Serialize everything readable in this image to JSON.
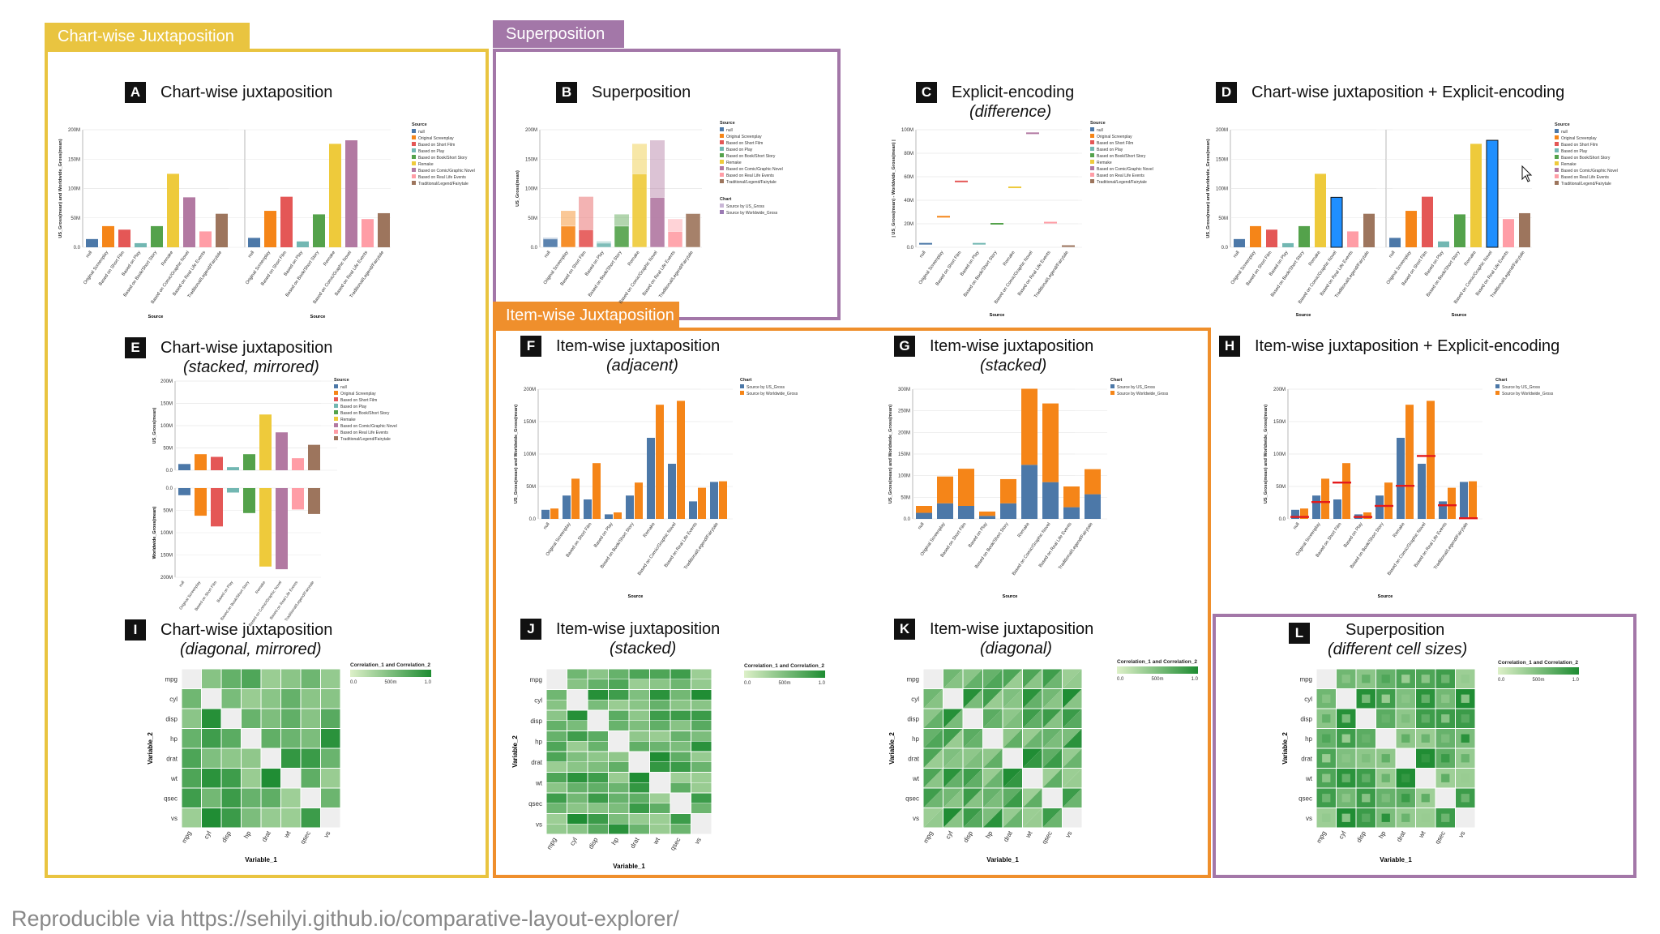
{
  "groups": {
    "chartwise": {
      "label": "Chart-wise Juxtaposition",
      "color": "#e9c440"
    },
    "superposition": {
      "label": "Superposition",
      "color": "#a377a8"
    },
    "itemwise": {
      "label": "Item-wise Juxtaposition",
      "color": "#ef8f2c"
    }
  },
  "footer": "Reproducible via https://sehilyi.github.io/comparative-layout-explorer/",
  "source_categories": [
    "null",
    "Original Screenplay",
    "Based on Short Film",
    "Based on Play",
    "Based on Book/Short Story",
    "Remake",
    "Based on Comic/Graphic Novel",
    "Based on Real Life Events",
    "Traditional/Legend/Fairytale"
  ],
  "source_colors": [
    "#4c78a8",
    "#f58518",
    "#e45756",
    "#72b7b2",
    "#54a24b",
    "#eeca3b",
    "#b279a2",
    "#ff9da6",
    "#9d755d"
  ],
  "series_colors": {
    "us": "#4c78a8",
    "worldwide": "#f58518",
    "diff": "#e41a1c",
    "highlight": "#1f8fff"
  },
  "variables": [
    "mpg",
    "cyl",
    "disp",
    "hp",
    "drat",
    "wt",
    "qsec",
    "vs"
  ],
  "axis_text": {
    "source": "Source",
    "null_label": "null",
    "gross_ylabel": "US_Gross(mean) and Worldwide_Gross(mean)",
    "us_ylabel": "US_Gross(mean)",
    "ww_ylabel": "Worldwide_Gross(mean)",
    "diff_ylabel": "| US_Gross(mean) - Worldwide_Gross(mean) |",
    "var1": "Variable_1",
    "var2": "Variable_2",
    "corr_legend": "Correlation_1 and Correlation_2",
    "corr_ticks": [
      "0.0",
      "500m",
      "1.0"
    ],
    "legend_source_title": "Source",
    "legend_chart_title": "Chart",
    "legend_chart_items": [
      "Source by US_Gross",
      "Source by Worldwide_Gross"
    ]
  },
  "panels": {
    "A": {
      "letter": "A",
      "title": "Chart-wise juxtaposition",
      "subtitle": ""
    },
    "B": {
      "letter": "B",
      "title": "Superposition",
      "subtitle": ""
    },
    "C": {
      "letter": "C",
      "title": "Explicit-encoding",
      "subtitle": "(difference)"
    },
    "D": {
      "letter": "D",
      "title": "Chart-wise juxtaposition + Explicit-encoding",
      "subtitle": ""
    },
    "E": {
      "letter": "E",
      "title": "Chart-wise juxtaposition",
      "subtitle": "(stacked, mirrored)"
    },
    "F": {
      "letter": "F",
      "title": "Item-wise juxtaposition",
      "subtitle": "(adjacent)"
    },
    "G": {
      "letter": "G",
      "title": "Item-wise juxtaposition",
      "subtitle": "(stacked)"
    },
    "H": {
      "letter": "H",
      "title": "Item-wise juxtaposition + Explicit-encoding",
      "subtitle": ""
    },
    "I": {
      "letter": "I",
      "title": "Chart-wise juxtaposition",
      "subtitle": "(diagonal, mirrored)"
    },
    "J": {
      "letter": "J",
      "title": "Item-wise juxtaposition",
      "subtitle": "(stacked)"
    },
    "K": {
      "letter": "K",
      "title": "Item-wise juxtaposition",
      "subtitle": "(diagonal)"
    },
    "L": {
      "letter": "L",
      "title": "Superposition",
      "subtitle": "(different cell sizes)"
    }
  },
  "chart_data": [
    {
      "panel": "A",
      "type": "bar",
      "categories": [
        "null",
        "Original Screenplay",
        "Based on Short Film",
        "Based on Play",
        "Based on Book/Short Story",
        "Remake",
        "Based on Comic/Graphic Novel",
        "Based on Real Life Events",
        "Traditional/Legend/Fairytale"
      ],
      "series": [
        {
          "name": "US_Gross(mean)",
          "values": [
            14,
            36,
            30,
            7,
            36,
            125,
            85,
            27,
            57
          ]
        },
        {
          "name": "Worldwide_Gross(mean)",
          "values": [
            16,
            62,
            86,
            10,
            56,
            176,
            182,
            48,
            58
          ]
        }
      ],
      "ylim": [
        0,
        200
      ],
      "yticks": [
        "0.0",
        "50M",
        "100M",
        "150M",
        "200M"
      ],
      "layout": "two charts side by side"
    },
    {
      "panel": "B",
      "type": "bar",
      "categories": [
        "null",
        "Original Screenplay",
        "Based on Short Film",
        "Based on Play",
        "Based on Book/Short Story",
        "Remake",
        "Based on Comic/Graphic Novel",
        "Based on Real Life Events",
        "Traditional/Legend/Fairytale"
      ],
      "series": [
        {
          "name": "Source by US_Gross",
          "values": [
            14,
            36,
            30,
            7,
            36,
            125,
            85,
            27,
            57
          ]
        },
        {
          "name": "Source by Worldwide_Gross",
          "values": [
            16,
            62,
            86,
            10,
            56,
            176,
            182,
            48,
            58
          ]
        }
      ],
      "ylim": [
        0,
        200
      ],
      "yticks": [
        "0.0",
        "50M",
        "100M",
        "150M",
        "200M"
      ],
      "layout": "overlaid"
    },
    {
      "panel": "C",
      "type": "scatter",
      "categories": [
        "null",
        "Original Screenplay",
        "Based on Short Film",
        "Based on Play",
        "Based on Book/Short Story",
        "Remake",
        "Based on Comic/Graphic Novel",
        "Based on Real Life Events",
        "Traditional/Legend/Fairytale"
      ],
      "values": [
        3,
        26,
        56,
        3,
        20,
        51,
        97,
        21,
        1
      ],
      "ylim": [
        0,
        100
      ],
      "yticks": [
        "0.0",
        "20M",
        "40M",
        "60M",
        "80M",
        "100M"
      ]
    },
    {
      "panel": "D",
      "type": "bar",
      "categories": [
        "null",
        "Original Screenplay",
        "Based on Short Film",
        "Based on Play",
        "Based on Book/Short Story",
        "Remake",
        "Based on Comic/Graphic Novel",
        "Based on Real Life Events",
        "Traditional/Legend/Fairytale"
      ],
      "series": [
        {
          "name": "US_Gross(mean)",
          "values": [
            14,
            36,
            30,
            7,
            36,
            125,
            85,
            27,
            57
          ]
        },
        {
          "name": "Worldwide_Gross(mean)",
          "values": [
            16,
            62,
            86,
            10,
            56,
            176,
            182,
            48,
            58
          ]
        }
      ],
      "highlight_category": "Based on Comic/Graphic Novel",
      "ylim": [
        0,
        200
      ],
      "yticks": [
        "0.0",
        "50M",
        "100M",
        "150M",
        "200M"
      ]
    },
    {
      "panel": "E",
      "type": "bar",
      "categories": [
        "null",
        "Original Screenplay",
        "Based on Short Film",
        "Based on Play",
        "Based on Book/Short Story",
        "Remake",
        "Based on Comic/Graphic Novel",
        "Based on Real Life Events",
        "Traditional/Legend/Fairytale"
      ],
      "series": [
        {
          "name": "US_Gross(mean)",
          "values": [
            14,
            36,
            30,
            7,
            36,
            125,
            85,
            27,
            57
          ]
        },
        {
          "name": "Worldwide_Gross(mean)",
          "values": [
            16,
            62,
            86,
            10,
            56,
            176,
            182,
            48,
            58
          ]
        }
      ],
      "ylim": [
        0,
        200
      ],
      "yticks_top": [
        "0.0",
        "50M",
        "100M",
        "150M",
        "200M"
      ],
      "yticks_bottom": [
        "0.0",
        "50M",
        "100M",
        "150M",
        "200M"
      ],
      "layout": "stacked, mirrored"
    },
    {
      "panel": "F",
      "type": "bar",
      "categories": [
        "null",
        "Original Screenplay",
        "Based on Short Film",
        "Based on Play",
        "Based on Book/Short Story",
        "Remake",
        "Based on Comic/Graphic Novel",
        "Based on Real Life Events",
        "Traditional/Legend/Fairytale"
      ],
      "series": [
        {
          "name": "Source by US_Gross",
          "values": [
            14,
            36,
            30,
            7,
            36,
            125,
            85,
            27,
            57
          ]
        },
        {
          "name": "Source by Worldwide_Gross",
          "values": [
            16,
            62,
            86,
            10,
            56,
            176,
            182,
            48,
            58
          ]
        }
      ],
      "ylim": [
        0,
        200
      ],
      "yticks": [
        "0.0",
        "50M",
        "100M",
        "150M",
        "200M"
      ],
      "layout": "grouped"
    },
    {
      "panel": "G",
      "type": "bar",
      "categories": [
        "null",
        "Original Screenplay",
        "Based on Short Film",
        "Based on Play",
        "Based on Book/Short Story",
        "Remake",
        "Based on Comic/Graphic Novel",
        "Based on Real Life Events",
        "Traditional/Legend/Fairytale"
      ],
      "series": [
        {
          "name": "Source by US_Gross",
          "values": [
            14,
            36,
            30,
            7,
            36,
            125,
            85,
            27,
            57
          ]
        },
        {
          "name": "Source by Worldwide_Gross",
          "values": [
            16,
            62,
            86,
            10,
            56,
            176,
            182,
            48,
            58
          ]
        }
      ],
      "ylim": [
        0,
        300
      ],
      "yticks": [
        "0.0",
        "50M",
        "100M",
        "150M",
        "200M",
        "250M",
        "300M"
      ],
      "layout": "stacked"
    },
    {
      "panel": "H",
      "type": "bar",
      "categories": [
        "null",
        "Original Screenplay",
        "Based on Short Film",
        "Based on Play",
        "Based on Book/Short Story",
        "Remake",
        "Based on Comic/Graphic Novel",
        "Based on Real Life Events",
        "Traditional/Legend/Fairytale"
      ],
      "series": [
        {
          "name": "Source by US_Gross",
          "values": [
            14,
            36,
            30,
            7,
            36,
            125,
            85,
            27,
            57
          ]
        },
        {
          "name": "Source by Worldwide_Gross",
          "values": [
            16,
            62,
            86,
            10,
            56,
            176,
            182,
            48,
            58
          ]
        }
      ],
      "difference_marks": [
        3,
        26,
        56,
        3,
        20,
        51,
        97,
        21,
        1
      ],
      "ylim": [
        0,
        200
      ],
      "yticks": [
        "0.0",
        "50M",
        "100M",
        "150M",
        "200M"
      ],
      "layout": "grouped with difference marks"
    },
    {
      "panel": "I",
      "type": "heatmap",
      "variables": [
        "mpg",
        "cyl",
        "disp",
        "hp",
        "drat",
        "wt",
        "qsec",
        "vs"
      ],
      "value_range": [
        0,
        1
      ],
      "layout": "diagonal, mirrored"
    },
    {
      "panel": "J",
      "type": "heatmap",
      "variables": [
        "mpg",
        "cyl",
        "disp",
        "hp",
        "drat",
        "wt",
        "qsec",
        "vs"
      ],
      "value_range": [
        0,
        1
      ],
      "layout": "stacked cells"
    },
    {
      "panel": "K",
      "type": "heatmap",
      "variables": [
        "mpg",
        "cyl",
        "disp",
        "hp",
        "drat",
        "wt",
        "qsec",
        "vs"
      ],
      "value_range": [
        0,
        1
      ],
      "layout": "diagonal split cells"
    },
    {
      "panel": "L",
      "type": "heatmap",
      "variables": [
        "mpg",
        "cyl",
        "disp",
        "hp",
        "drat",
        "wt",
        "qsec",
        "vs"
      ],
      "value_range": [
        0,
        1
      ],
      "layout": "nested cells of different sizes"
    }
  ]
}
